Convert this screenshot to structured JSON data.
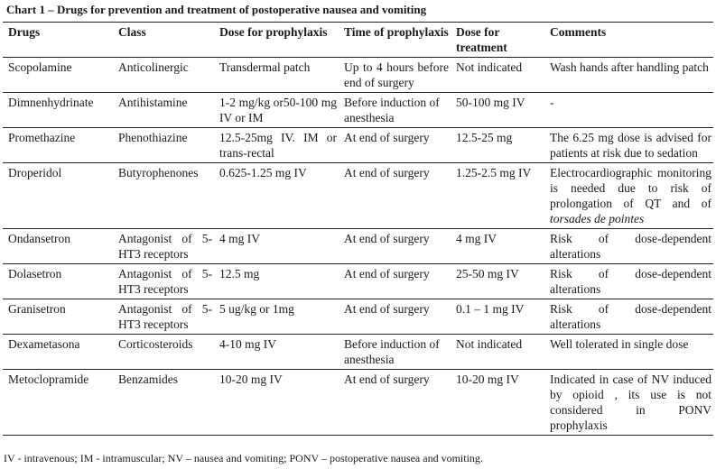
{
  "caption": "Chart 1 – Drugs for prevention and treatment of postoperative nausea and vomiting",
  "headers": [
    "Drugs",
    "Class",
    "Dose for prophylaxis",
    "Time of prophylaxis",
    "Dose for treatment",
    "Comments"
  ],
  "rows": [
    {
      "drug": "Scopolamine",
      "class": "Anticolinergic",
      "dose_prophylaxis": "Transdermal patch",
      "time": "Up to 4 hours before end of surgery",
      "dose_treatment": "Not indicated",
      "comments": "Wash hands after handling patch"
    },
    {
      "drug": "Dimnenhydrinate",
      "class": "Antihistamine",
      "dose_prophylaxis": "1-2 mg/kg or50-100 mg IV or IM",
      "time": "Before induction of anesthesia",
      "dose_treatment": "50-100 mg IV",
      "comments": "-"
    },
    {
      "drug": "Promethazine",
      "class": "Phenothiazine",
      "dose_prophylaxis": "12.5-25mg IV. IM or trans-rectal",
      "time": "At end of surgery",
      "dose_treatment": "12.5-25 mg",
      "comments": "The 6.25 mg dose is advised for patients at risk due to sedation"
    },
    {
      "drug": "Droperidol",
      "class": "Butyrophenones",
      "dose_prophylaxis": "0.625-1.25 mg IV",
      "time": "At end of surgery",
      "dose_treatment": "1.25-2.5 mg IV",
      "comments": "Electrocardiographic monitoring is needed due to risk of prolongation of QT and of",
      "comments_italic": "torsades de pointes"
    },
    {
      "drug": "Ondansetron",
      "class": "Antagonist of 5-HT3 receptors",
      "dose_prophylaxis": "4 mg IV",
      "time": "At end of surgery",
      "dose_treatment": "4 mg IV",
      "comments": "Risk of dose-dependent alterations"
    },
    {
      "drug": "Dolasetron",
      "class": "Antagonist of 5-HT3 receptors",
      "dose_prophylaxis": "12.5 mg",
      "time": "At end of surgery",
      "dose_treatment": "25-50 mg IV",
      "comments": "Risk of dose-dependent alterations"
    },
    {
      "drug": "Granisetron",
      "class": "Antagonist of 5-HT3 receptors",
      "dose_prophylaxis": "5 ug/kg or 1mg",
      "time": "At end of surgery",
      "dose_treatment": "0.1 – 1 mg IV",
      "comments": "Risk of dose-dependent alterations"
    },
    {
      "drug": "Dexametasona",
      "class": "Corticosteroids",
      "dose_prophylaxis": "4-10 mg IV",
      "time": "Before induction of anesthesia",
      "dose_treatment": "Not indicated",
      "comments": "Well tolerated in single dose"
    },
    {
      "drug": "Metoclopramide",
      "class": "Benzamides",
      "dose_prophylaxis": "10-20 mg IV",
      "time": "At end of surgery",
      "dose_treatment": "10-20 mg IV",
      "comments": "Indicated in case of NV induced by opioid , its use is not considered in PONV prophylaxis"
    }
  ],
  "footnote": "IV - intravenous; IM - intramuscular; NV – nausea and vomiting; PONV – postoperative nausea and vomiting."
}
